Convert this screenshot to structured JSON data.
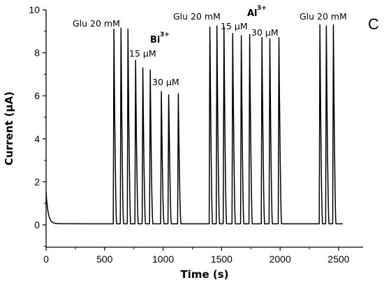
{
  "chart_data": {
    "type": "line",
    "panel_label": "C",
    "xlabel": "Time (s)",
    "ylabel": "Current (μA)",
    "xlim": [
      0,
      2600
    ],
    "ylim": [
      -1,
      10
    ],
    "xticks": [
      0,
      500,
      1000,
      1500,
      2000,
      2500
    ],
    "yticks": [
      0,
      2,
      4,
      6,
      8,
      10
    ],
    "grid": false,
    "legend": "none",
    "line_color": "#000000",
    "baseline": {
      "initial_value": 1.5,
      "steady_value": 0.05
    },
    "peaks": [
      {
        "x": 580,
        "y": 9.1
      },
      {
        "x": 640,
        "y": 9.15
      },
      {
        "x": 700,
        "y": 9.1
      },
      {
        "x": 765,
        "y": 7.65
      },
      {
        "x": 827,
        "y": 7.3
      },
      {
        "x": 890,
        "y": 7.2
      },
      {
        "x": 985,
        "y": 6.2
      },
      {
        "x": 1048,
        "y": 6.05
      },
      {
        "x": 1130,
        "y": 6.1
      },
      {
        "x": 1400,
        "y": 9.2
      },
      {
        "x": 1460,
        "y": 9.25
      },
      {
        "x": 1520,
        "y": 9.2
      },
      {
        "x": 1595,
        "y": 8.9
      },
      {
        "x": 1668,
        "y": 8.8
      },
      {
        "x": 1740,
        "y": 8.85
      },
      {
        "x": 1845,
        "y": 8.7
      },
      {
        "x": 1912,
        "y": 8.65
      },
      {
        "x": 1990,
        "y": 8.7
      },
      {
        "x": 2340,
        "y": 9.3
      },
      {
        "x": 2395,
        "y": 9.25
      },
      {
        "x": 2455,
        "y": 9.3
      }
    ],
    "annotations": {
      "glu_1": "Glu 20 mM",
      "bi_main": "Bi",
      "bi_sup": "3+",
      "bi_15": "15 μM",
      "bi_30": "30 μM",
      "glu_2": "Glu 20 mM",
      "al_main": "Al",
      "al_sup": "3+",
      "al_15": "15 μM",
      "al_30": "30 μM",
      "glu_3": "Glu 20 mM"
    }
  }
}
